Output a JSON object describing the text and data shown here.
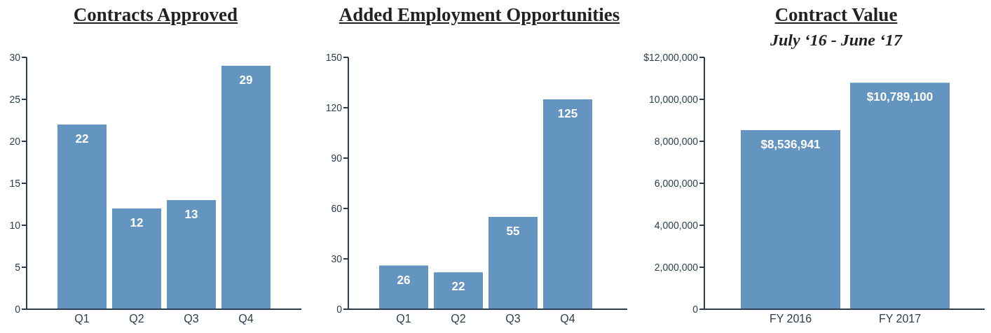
{
  "chart_data": [
    {
      "type": "bar",
      "title": "Contracts Approved",
      "categories": [
        "Q1",
        "Q2",
        "Q3",
        "Q4"
      ],
      "values": [
        22,
        12,
        13,
        29
      ],
      "color": "#6494c0",
      "ylim": [
        0,
        30
      ],
      "yticks": [
        0,
        5,
        10,
        15,
        20,
        25,
        30
      ],
      "data_labels": true
    },
    {
      "type": "bar",
      "title": "Added Employment Opportunities",
      "categories": [
        "Q1",
        "Q2",
        "Q3",
        "Q4"
      ],
      "values": [
        26,
        22,
        55,
        125
      ],
      "color": "#6494c0",
      "ylim": [
        0,
        150
      ],
      "yticks": [
        0,
        30,
        60,
        90,
        120,
        150
      ],
      "data_labels": true
    },
    {
      "type": "bar",
      "title": "Contract Value",
      "subtitle": "July ‘16 - June ‘17",
      "categories": [
        "FY 2016",
        "FY 2017"
      ],
      "values": [
        8536941,
        10789100
      ],
      "color": "#6494c0",
      "ylim": [
        0,
        12000000
      ],
      "yticks": [
        0,
        {
          "value": 2000000,
          "label": "2,000,000"
        },
        {
          "value": 4000000,
          "label": "4,000,000"
        },
        {
          "value": 6000000,
          "label": "6,000,000"
        },
        {
          "value": 8000000,
          "label": "8,000,000"
        },
        {
          "value": 10000000,
          "label": "10,000,000"
        },
        {
          "value": 12000000,
          "label": "$12,000,000"
        }
      ],
      "value_labels": [
        "$8,536,941",
        "$10,789,100"
      ]
    }
  ]
}
